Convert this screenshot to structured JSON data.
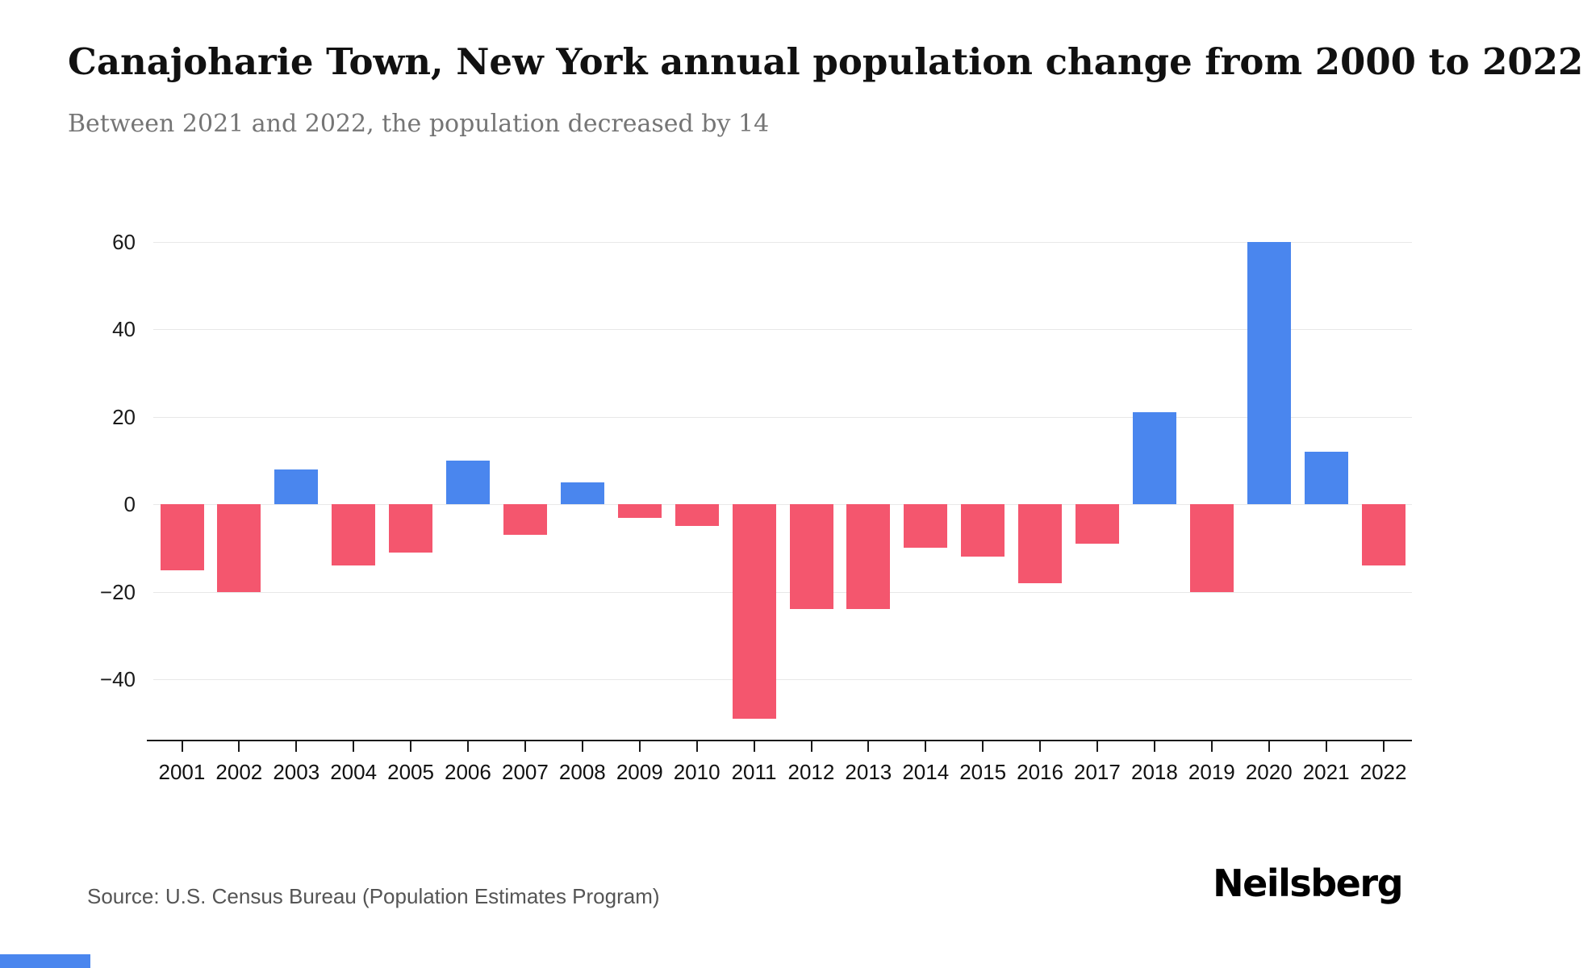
{
  "header": {
    "title": "Canajoharie Town, New York annual population change from 2000 to 2022",
    "subtitle": "Between 2021 and 2022, the population decreased by 14"
  },
  "chart_data": {
    "type": "bar",
    "title": "Canajoharie Town, New York annual population change from 2000 to 2022",
    "categories": [
      "2001",
      "2002",
      "2003",
      "2004",
      "2005",
      "2006",
      "2007",
      "2008",
      "2009",
      "2010",
      "2011",
      "2012",
      "2013",
      "2014",
      "2015",
      "2016",
      "2017",
      "2018",
      "2019",
      "2020",
      "2021",
      "2022"
    ],
    "values": [
      -15,
      -20,
      8,
      -14,
      -11,
      10,
      -7,
      5,
      -3,
      -5,
      -49,
      -24,
      -24,
      -10,
      -12,
      -18,
      -9,
      21,
      -20,
      60,
      12,
      -14
    ],
    "xlabel": "",
    "ylabel": "",
    "yticks": [
      60,
      40,
      20,
      0,
      -20,
      -40
    ],
    "ylim": [
      -54,
      60
    ],
    "grid": true,
    "legend_position": "none",
    "colors": {
      "positive": "#4a86ee",
      "negative": "#f4566e"
    }
  },
  "footer": {
    "source": "Source: U.S. Census Bureau (Population Estimates Program)",
    "brand": "Neilsberg"
  }
}
